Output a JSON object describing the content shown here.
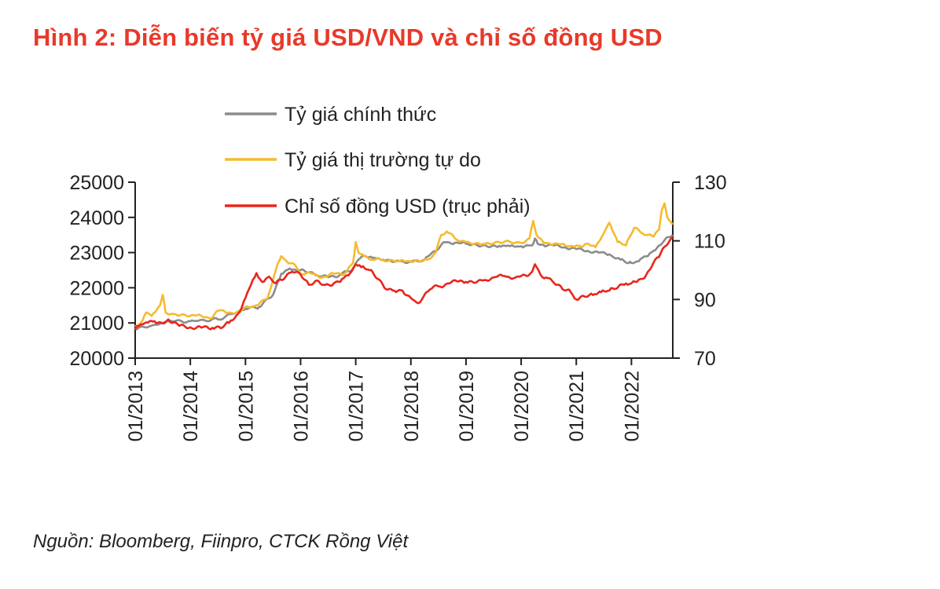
{
  "title": "Hình 2: Diễn biến tỷ giá USD/VND và chỉ số đồng USD",
  "source": "Nguồn: Bloomberg, Fiinpro, CTCK Rồng Việt",
  "chart_data": {
    "type": "line",
    "title": "Hình 2: Diễn biến tỷ giá USD/VND và chỉ số đồng USD",
    "x_ticks": [
      "01/2013",
      "01/2014",
      "01/2015",
      "01/2016",
      "01/2017",
      "01/2018",
      "01/2019",
      "01/2020",
      "01/2021",
      "01/2022"
    ],
    "x_range": [
      2013.0,
      2022.75
    ],
    "y_left": {
      "range": [
        20000,
        25000
      ],
      "ticks": [
        20000,
        21000,
        22000,
        23000,
        24000,
        25000
      ]
    },
    "y_right": {
      "range": [
        70,
        130
      ],
      "ticks": [
        70,
        90,
        110,
        130
      ],
      "label": "trục phải"
    },
    "legend_position": "top-center",
    "series": [
      {
        "name": "Tỷ giá chính thức",
        "axis": "left",
        "color": "#8c8c8c",
        "x": [
          2013.0,
          2013.25,
          2013.5,
          2013.6,
          2014.0,
          2014.5,
          2014.75,
          2015.0,
          2015.25,
          2015.5,
          2015.65,
          2015.8,
          2016.0,
          2016.3,
          2016.5,
          2016.7,
          2016.95,
          2017.05,
          2017.15,
          2017.3,
          2017.5,
          2017.8,
          2018.0,
          2018.25,
          2018.45,
          2018.6,
          2018.8,
          2019.0,
          2019.3,
          2019.6,
          2019.8,
          2020.0,
          2020.2,
          2020.25,
          2020.3,
          2020.4,
          2020.6,
          2020.8,
          2021.0,
          2021.2,
          2021.4,
          2021.6,
          2021.8,
          2021.95,
          2022.0,
          2022.1,
          2022.2,
          2022.3,
          2022.4,
          2022.5,
          2022.6,
          2022.75
        ],
        "values": [
          20830,
          20900,
          21000,
          21050,
          21050,
          21100,
          21250,
          21400,
          21450,
          21800,
          22400,
          22550,
          22500,
          22350,
          22300,
          22350,
          22550,
          22800,
          22900,
          22850,
          22800,
          22750,
          22740,
          22800,
          23050,
          23300,
          23280,
          23250,
          23200,
          23190,
          23180,
          23180,
          23200,
          23400,
          23250,
          23220,
          23200,
          23150,
          23100,
          23050,
          23000,
          22950,
          22800,
          22700,
          22700,
          22750,
          22850,
          22900,
          23050,
          23200,
          23350,
          23500
        ]
      },
      {
        "name": "Tỷ giá thị trường tự do",
        "axis": "left",
        "color": "#f5bb2d",
        "x": [
          2013.0,
          2013.1,
          2013.2,
          2013.3,
          2013.45,
          2013.5,
          2013.55,
          2013.7,
          2014.0,
          2014.2,
          2014.4,
          2014.5,
          2014.7,
          2014.9,
          2015.0,
          2015.2,
          2015.4,
          2015.55,
          2015.65,
          2015.75,
          2015.85,
          2016.0,
          2016.2,
          2016.4,
          2016.6,
          2016.8,
          2016.95,
          2017.0,
          2017.05,
          2017.15,
          2017.3,
          2017.5,
          2017.8,
          2018.0,
          2018.3,
          2018.45,
          2018.55,
          2018.65,
          2018.8,
          2019.0,
          2019.3,
          2019.6,
          2020.0,
          2020.15,
          2020.22,
          2020.28,
          2020.4,
          2020.6,
          2020.8,
          2021.0,
          2021.1,
          2021.2,
          2021.35,
          2021.5,
          2021.6,
          2021.75,
          2021.9,
          2022.05,
          2022.2,
          2022.3,
          2022.4,
          2022.5,
          2022.55,
          2022.6,
          2022.65,
          2022.75
        ],
        "values": [
          20900,
          21000,
          21300,
          21200,
          21500,
          21800,
          21300,
          21250,
          21200,
          21200,
          21150,
          21350,
          21300,
          21300,
          21450,
          21500,
          21700,
          22500,
          22900,
          22750,
          22700,
          22400,
          22400,
          22300,
          22400,
          22400,
          22700,
          23300,
          23000,
          22900,
          22800,
          22780,
          22750,
          22750,
          22800,
          23000,
          23500,
          23600,
          23400,
          23300,
          23250,
          23300,
          23280,
          23400,
          23900,
          23500,
          23300,
          23250,
          23200,
          23200,
          23150,
          23250,
          23150,
          23550,
          23850,
          23300,
          23200,
          23700,
          23550,
          23500,
          23450,
          23650,
          24200,
          24400,
          24000,
          23800
        ]
      },
      {
        "name": "Chỉ số đồng USD (trục phải)",
        "axis": "right",
        "color": "#e8261c",
        "x": [
          2013.0,
          2013.1,
          2013.2,
          2013.35,
          2013.5,
          2013.6,
          2013.8,
          2014.0,
          2014.2,
          2014.4,
          2014.55,
          2014.7,
          2014.9,
          2015.0,
          2015.1,
          2015.2,
          2015.3,
          2015.4,
          2015.55,
          2015.7,
          2015.85,
          2016.0,
          2016.15,
          2016.3,
          2016.45,
          2016.6,
          2016.75,
          2016.9,
          2017.0,
          2017.1,
          2017.25,
          2017.4,
          2017.55,
          2017.7,
          2017.85,
          2018.0,
          2018.1,
          2018.2,
          2018.35,
          2018.5,
          2018.7,
          2018.9,
          2019.0,
          2019.3,
          2019.5,
          2019.7,
          2019.9,
          2020.1,
          2020.2,
          2020.25,
          2020.35,
          2020.45,
          2020.6,
          2020.75,
          2020.9,
          2021.0,
          2021.15,
          2021.3,
          2021.45,
          2021.6,
          2021.75,
          2021.9,
          2022.0,
          2022.1,
          2022.2,
          2022.3,
          2022.4,
          2022.5,
          2022.6,
          2022.75
        ],
        "values": [
          79.8,
          81.5,
          82.2,
          82.6,
          81.8,
          83.2,
          81.0,
          80.5,
          80.4,
          80.3,
          80.2,
          82.0,
          86.0,
          90.5,
          95.0,
          99.0,
          96.0,
          97.5,
          95.5,
          97.0,
          99.5,
          98.5,
          95.0,
          96.5,
          95.0,
          95.5,
          97.0,
          99.0,
          102.0,
          101.0,
          100.0,
          97.0,
          93.5,
          93.0,
          93.0,
          90.5,
          89.0,
          90.0,
          93.5,
          94.5,
          95.5,
          96.5,
          96.0,
          96.5,
          97.5,
          98.0,
          97.5,
          98.0,
          99.5,
          102.0,
          98.5,
          97.5,
          95.5,
          93.5,
          92.5,
          90.0,
          91.0,
          91.5,
          92.5,
          93.0,
          94.0,
          95.5,
          95.5,
          96.0,
          97.0,
          99.5,
          102.5,
          104.5,
          108.0,
          111.0
        ]
      }
    ]
  }
}
